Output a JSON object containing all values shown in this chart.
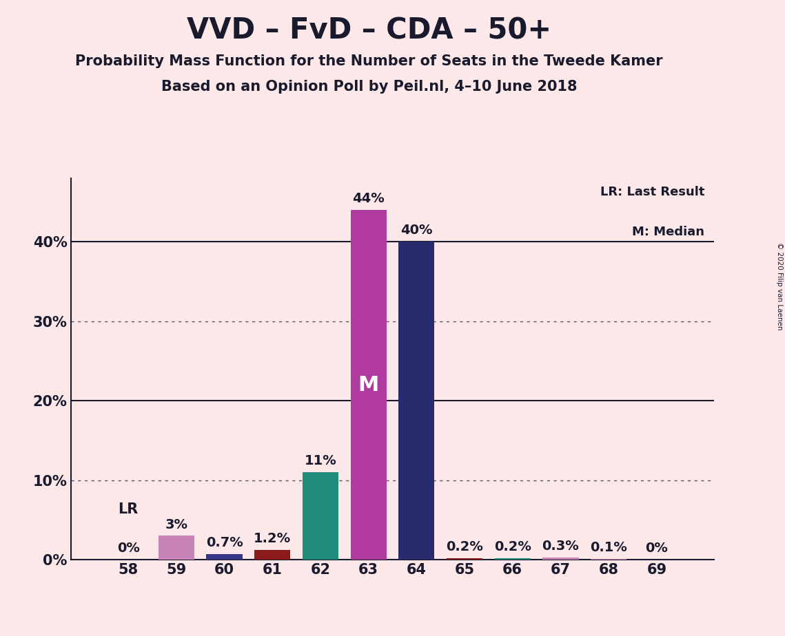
{
  "title": "VVD – FvD – CDA – 50+",
  "subtitle1": "Probability Mass Function for the Number of Seats in the Tweede Kamer",
  "subtitle2": "Based on an Opinion Poll by Peil.nl, 4–10 June 2018",
  "copyright": "© 2020 Filip van Laenen",
  "legend_lr": "LR: Last Result",
  "legend_m": "M: Median",
  "seats": [
    58,
    59,
    60,
    61,
    62,
    63,
    64,
    65,
    66,
    67,
    68,
    69
  ],
  "values": [
    0.0,
    3.0,
    0.7,
    1.2,
    11.0,
    44.0,
    40.0,
    0.2,
    0.2,
    0.3,
    0.1,
    0.0
  ],
  "labels": [
    "0%",
    "3%",
    "0.7%",
    "1.2%",
    "11%",
    "44%",
    "40%",
    "0.2%",
    "0.2%",
    "0.3%",
    "0.1%",
    "0%"
  ],
  "colors": [
    "#c884b8",
    "#c884b8",
    "#363686",
    "#8b1a1a",
    "#1e8c78",
    "#b03aa0",
    "#2a2a6e",
    "#8b1a1a",
    "#1e8c78",
    "#c884b8",
    "#c884b8",
    "#c884b8"
  ],
  "lr_seat": 58,
  "median_seat": 63,
  "median_label": "M",
  "lr_label": "LR",
  "background_color": "#fce8e8",
  "yticks": [
    0,
    10,
    20,
    30,
    40
  ],
  "ytick_labels": [
    "0%",
    "10%",
    "20%",
    "30%",
    "40%"
  ],
  "ylim": [
    0,
    48
  ],
  "title_fontsize": 30,
  "subtitle_fontsize": 15,
  "tick_fontsize": 15,
  "label_fontsize": 14,
  "annotation_fontsize": 15
}
